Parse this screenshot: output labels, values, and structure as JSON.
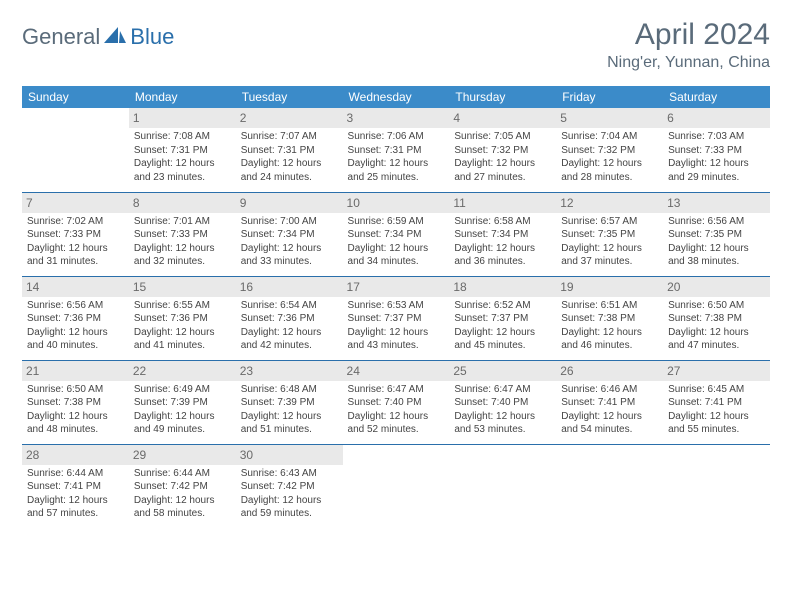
{
  "brand": {
    "part1": "General",
    "part2": "Blue"
  },
  "title": "April 2024",
  "location": "Ning'er, Yunnan, China",
  "colors": {
    "header_bg": "#3b8bc9",
    "header_text": "#ffffff",
    "rule": "#2a6fab",
    "daynum_bg": "#e9e9e9",
    "text": "#444444",
    "title": "#5a6b7a",
    "brand_accent": "#2a6fab"
  },
  "weekdays": [
    "Sunday",
    "Monday",
    "Tuesday",
    "Wednesday",
    "Thursday",
    "Friday",
    "Saturday"
  ],
  "font": {
    "title_size": 30,
    "location_size": 16,
    "header_size": 12,
    "body_size": 10
  },
  "weeks": [
    [
      {
        "n": "",
        "sr": "",
        "ss": "",
        "dl": ""
      },
      {
        "n": "1",
        "sr": "7:08 AM",
        "ss": "7:31 PM",
        "dl": "12 hours and 23 minutes."
      },
      {
        "n": "2",
        "sr": "7:07 AM",
        "ss": "7:31 PM",
        "dl": "12 hours and 24 minutes."
      },
      {
        "n": "3",
        "sr": "7:06 AM",
        "ss": "7:31 PM",
        "dl": "12 hours and 25 minutes."
      },
      {
        "n": "4",
        "sr": "7:05 AM",
        "ss": "7:32 PM",
        "dl": "12 hours and 27 minutes."
      },
      {
        "n": "5",
        "sr": "7:04 AM",
        "ss": "7:32 PM",
        "dl": "12 hours and 28 minutes."
      },
      {
        "n": "6",
        "sr": "7:03 AM",
        "ss": "7:33 PM",
        "dl": "12 hours and 29 minutes."
      }
    ],
    [
      {
        "n": "7",
        "sr": "7:02 AM",
        "ss": "7:33 PM",
        "dl": "12 hours and 31 minutes."
      },
      {
        "n": "8",
        "sr": "7:01 AM",
        "ss": "7:33 PM",
        "dl": "12 hours and 32 minutes."
      },
      {
        "n": "9",
        "sr": "7:00 AM",
        "ss": "7:34 PM",
        "dl": "12 hours and 33 minutes."
      },
      {
        "n": "10",
        "sr": "6:59 AM",
        "ss": "7:34 PM",
        "dl": "12 hours and 34 minutes."
      },
      {
        "n": "11",
        "sr": "6:58 AM",
        "ss": "7:34 PM",
        "dl": "12 hours and 36 minutes."
      },
      {
        "n": "12",
        "sr": "6:57 AM",
        "ss": "7:35 PM",
        "dl": "12 hours and 37 minutes."
      },
      {
        "n": "13",
        "sr": "6:56 AM",
        "ss": "7:35 PM",
        "dl": "12 hours and 38 minutes."
      }
    ],
    [
      {
        "n": "14",
        "sr": "6:56 AM",
        "ss": "7:36 PM",
        "dl": "12 hours and 40 minutes."
      },
      {
        "n": "15",
        "sr": "6:55 AM",
        "ss": "7:36 PM",
        "dl": "12 hours and 41 minutes."
      },
      {
        "n": "16",
        "sr": "6:54 AM",
        "ss": "7:36 PM",
        "dl": "12 hours and 42 minutes."
      },
      {
        "n": "17",
        "sr": "6:53 AM",
        "ss": "7:37 PM",
        "dl": "12 hours and 43 minutes."
      },
      {
        "n": "18",
        "sr": "6:52 AM",
        "ss": "7:37 PM",
        "dl": "12 hours and 45 minutes."
      },
      {
        "n": "19",
        "sr": "6:51 AM",
        "ss": "7:38 PM",
        "dl": "12 hours and 46 minutes."
      },
      {
        "n": "20",
        "sr": "6:50 AM",
        "ss": "7:38 PM",
        "dl": "12 hours and 47 minutes."
      }
    ],
    [
      {
        "n": "21",
        "sr": "6:50 AM",
        "ss": "7:38 PM",
        "dl": "12 hours and 48 minutes."
      },
      {
        "n": "22",
        "sr": "6:49 AM",
        "ss": "7:39 PM",
        "dl": "12 hours and 49 minutes."
      },
      {
        "n": "23",
        "sr": "6:48 AM",
        "ss": "7:39 PM",
        "dl": "12 hours and 51 minutes."
      },
      {
        "n": "24",
        "sr": "6:47 AM",
        "ss": "7:40 PM",
        "dl": "12 hours and 52 minutes."
      },
      {
        "n": "25",
        "sr": "6:47 AM",
        "ss": "7:40 PM",
        "dl": "12 hours and 53 minutes."
      },
      {
        "n": "26",
        "sr": "6:46 AM",
        "ss": "7:41 PM",
        "dl": "12 hours and 54 minutes."
      },
      {
        "n": "27",
        "sr": "6:45 AM",
        "ss": "7:41 PM",
        "dl": "12 hours and 55 minutes."
      }
    ],
    [
      {
        "n": "28",
        "sr": "6:44 AM",
        "ss": "7:41 PM",
        "dl": "12 hours and 57 minutes."
      },
      {
        "n": "29",
        "sr": "6:44 AM",
        "ss": "7:42 PM",
        "dl": "12 hours and 58 minutes."
      },
      {
        "n": "30",
        "sr": "6:43 AM",
        "ss": "7:42 PM",
        "dl": "12 hours and 59 minutes."
      },
      {
        "n": "",
        "sr": "",
        "ss": "",
        "dl": ""
      },
      {
        "n": "",
        "sr": "",
        "ss": "",
        "dl": ""
      },
      {
        "n": "",
        "sr": "",
        "ss": "",
        "dl": ""
      },
      {
        "n": "",
        "sr": "",
        "ss": "",
        "dl": ""
      }
    ]
  ],
  "labels": {
    "sunrise": "Sunrise: ",
    "sunset": "Sunset: ",
    "daylight": "Daylight: "
  }
}
